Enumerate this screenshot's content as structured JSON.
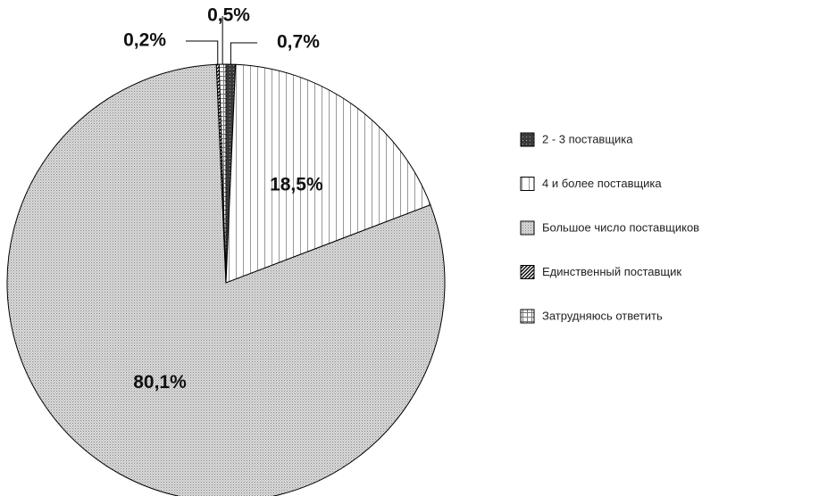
{
  "chart_data": {
    "type": "pie",
    "categories": [
      "2 - 3 поставщика",
      "4 и более поставщика",
      "Большое число поставщиков",
      "Единственный поставщик",
      "Затрудняюсь ответить"
    ],
    "values": [
      0.7,
      18.5,
      80.1,
      0.2,
      0.5
    ],
    "value_labels": [
      "0,7%",
      "18,5%",
      "80,1%",
      "0,2%",
      "0,5%"
    ],
    "colors": [
      "#3a3a3a",
      "#ffffff",
      "#c8c8c8",
      "#ffffff",
      "#ffffff"
    ]
  }
}
